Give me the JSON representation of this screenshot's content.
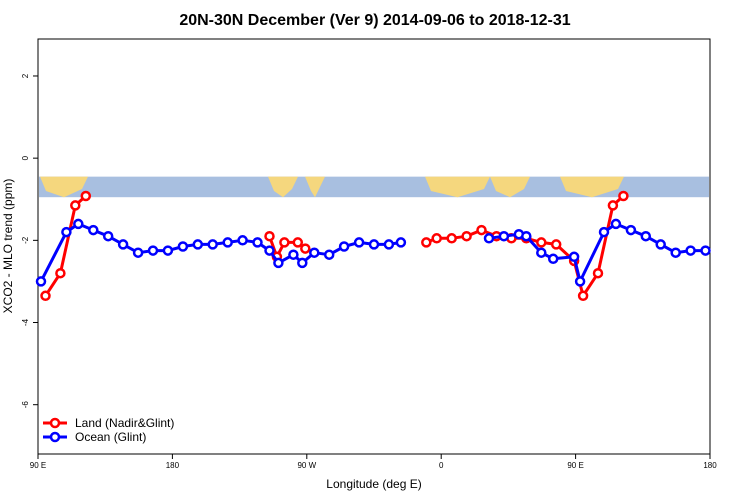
{
  "chart_data": {
    "type": "line",
    "title": "20N-30N December (Ver 9)   2014-09-06 to 2018-12-31",
    "xlabel": "Longitude (deg E)",
    "ylabel": "XCO2 - MLO trend (ppm)",
    "xlim": [
      90,
      540
    ],
    "ylim": [
      -7.2,
      2.9
    ],
    "grid": false,
    "x_ticks": [
      {
        "value": 90,
        "label": "90 E"
      },
      {
        "value": 180,
        "label": "180"
      },
      {
        "value": 270,
        "label": "90 W"
      },
      {
        "value": 360,
        "label": "0"
      },
      {
        "value": 450,
        "label": "90 E"
      },
      {
        "value": 540,
        "label": "180"
      }
    ],
    "y_ticks": [
      {
        "value": 2,
        "label": "2"
      },
      {
        "value": 0,
        "label": "0"
      },
      {
        "value": -2,
        "label": "-2"
      },
      {
        "value": -4,
        "label": "-4"
      },
      {
        "value": -6,
        "label": "-6"
      }
    ],
    "map_band": {
      "y_from": -0.95,
      "y_to": -0.45,
      "ocean_color": "#a8bfe0",
      "land_color": "#f5d77e"
    },
    "legend": {
      "placement": "bottom-left"
    },
    "series": [
      {
        "name": "Land (Nadir&Glint)",
        "color": "#ff0000",
        "segments": [
          [
            [
              95,
              -3.35
            ],
            [
              105,
              -2.8
            ],
            [
              115,
              -1.15
            ],
            [
              122,
              -0.92
            ]
          ],
          [
            [
              245,
              -1.9
            ],
            [
              250,
              -2.4
            ],
            [
              255,
              -2.05
            ],
            [
              264,
              -2.05
            ],
            [
              269,
              -2.2
            ]
          ],
          [
            [
              350,
              -2.05
            ],
            [
              357,
              -1.95
            ],
            [
              367,
              -1.95
            ],
            [
              377,
              -1.9
            ],
            [
              387,
              -1.75
            ],
            [
              397,
              -1.9
            ],
            [
              407,
              -1.95
            ],
            [
              417,
              -1.95
            ],
            [
              427,
              -2.05
            ],
            [
              437,
              -2.1
            ],
            [
              449,
              -2.5
            ],
            [
              455,
              -3.35
            ],
            [
              465,
              -2.8
            ],
            [
              475,
              -1.15
            ],
            [
              482,
              -0.92
            ]
          ]
        ]
      },
      {
        "name": "Ocean (Glint)",
        "color": "#0000ff",
        "segments": [
          [
            [
              92,
              -3.0
            ],
            [
              109,
              -1.8
            ],
            [
              117,
              -1.6
            ],
            [
              127,
              -1.75
            ],
            [
              137,
              -1.9
            ],
            [
              147,
              -2.1
            ],
            [
              157,
              -2.3
            ],
            [
              167,
              -2.25
            ],
            [
              177,
              -2.25
            ],
            [
              187,
              -2.15
            ],
            [
              197,
              -2.1
            ],
            [
              207,
              -2.1
            ],
            [
              217,
              -2.05
            ],
            [
              227,
              -2.0
            ],
            [
              237,
              -2.05
            ],
            [
              245,
              -2.25
            ],
            [
              251,
              -2.55
            ],
            [
              261,
              -2.35
            ],
            [
              267,
              -2.55
            ],
            [
              275,
              -2.3
            ],
            [
              285,
              -2.35
            ],
            [
              295,
              -2.15
            ],
            [
              305,
              -2.05
            ],
            [
              315,
              -2.1
            ],
            [
              325,
              -2.1
            ],
            [
              333,
              -2.05
            ]
          ],
          [
            [
              392,
              -1.95
            ],
            [
              402,
              -1.9
            ],
            [
              412,
              -1.85
            ],
            [
              417,
              -1.9
            ],
            [
              427,
              -2.3
            ],
            [
              435,
              -2.45
            ],
            [
              449,
              -2.4
            ],
            [
              453,
              -3.0
            ],
            [
              469,
              -1.8
            ],
            [
              477,
              -1.6
            ],
            [
              487,
              -1.75
            ],
            [
              497,
              -1.9
            ],
            [
              507,
              -2.1
            ],
            [
              517,
              -2.3
            ],
            [
              527,
              -2.25
            ],
            [
              537,
              -2.25
            ]
          ]
        ]
      }
    ]
  }
}
